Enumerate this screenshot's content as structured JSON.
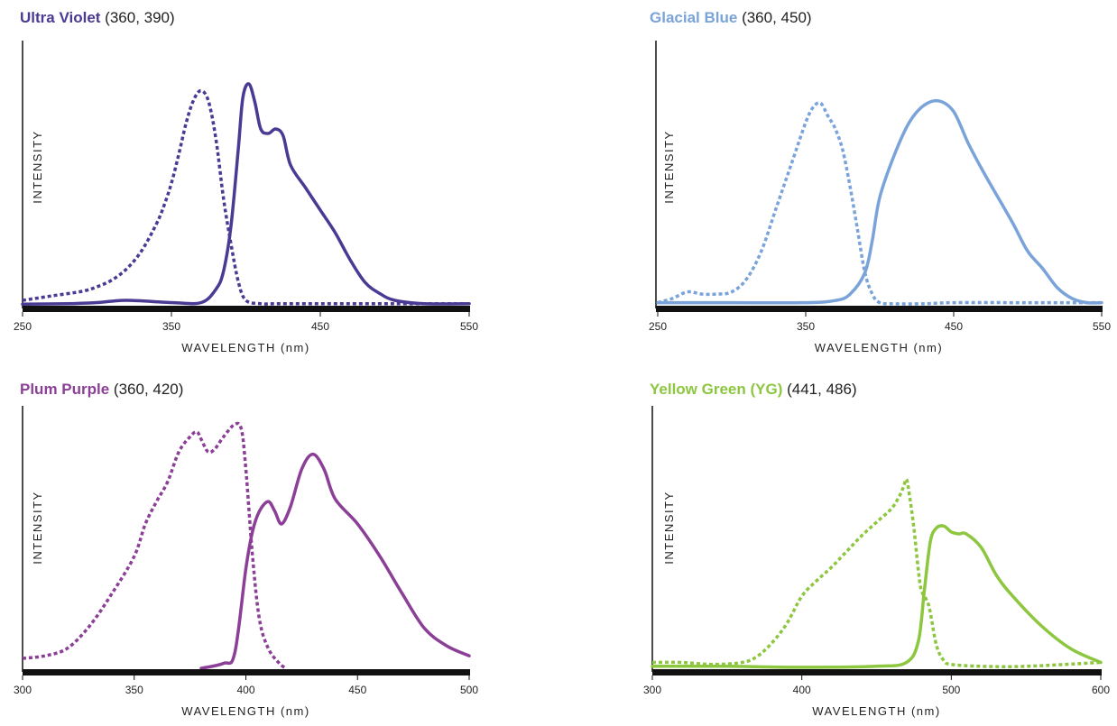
{
  "chart_data": [
    {
      "type": "line",
      "title": "Ultra Violet",
      "subtitle": "(360, 390)",
      "title_color": "#4b3a93",
      "line_color": "#4b3a93",
      "xlabel": "WAVELENGTH (nm)",
      "ylabel": "INTENSITY",
      "xlim": [
        250,
        550
      ],
      "ylim": [
        0,
        100
      ],
      "xticks": [
        250,
        350,
        450,
        550
      ],
      "grid": false,
      "series": [
        {
          "style": "dashed",
          "x": [
            250,
            270,
            290,
            300,
            310,
            320,
            330,
            340,
            345,
            350,
            355,
            360,
            365,
            370,
            375,
            380,
            385,
            390,
            395,
            400,
            410,
            420,
            450,
            500,
            550
          ],
          "y": [
            2,
            4,
            6,
            8,
            11,
            16,
            24,
            36,
            44,
            54,
            67,
            81,
            91,
            95,
            90,
            73,
            47,
            27,
            10,
            2,
            0.5,
            0.5,
            0.5,
            0.5,
            0.5
          ]
        },
        {
          "style": "solid",
          "x": [
            250,
            280,
            300,
            320,
            350,
            370,
            380,
            385,
            390,
            395,
            398,
            402,
            406,
            410,
            415,
            420,
            425,
            430,
            440,
            450,
            460,
            470,
            480,
            490,
            500,
            520,
            550
          ],
          "y": [
            0.3,
            0.5,
            1,
            2,
            1,
            1,
            7,
            15,
            35,
            70,
            92,
            98,
            90,
            78,
            76,
            78,
            75,
            62,
            52,
            42,
            32,
            20,
            10,
            5,
            2,
            0.5,
            0.5
          ]
        }
      ]
    },
    {
      "type": "line",
      "title": "Glacial Blue",
      "subtitle": "(360, 450)",
      "title_color": "#79a3d9",
      "line_color": "#79a3d9",
      "xlabel": "WAVELENGTH (nm)",
      "ylabel": "INTENSITY",
      "xlim": [
        250,
        550
      ],
      "ylim": [
        0,
        100
      ],
      "xticks": [
        250,
        350,
        450,
        550
      ],
      "grid": false,
      "series": [
        {
          "style": "dashed",
          "x": [
            250,
            260,
            270,
            280,
            290,
            300,
            310,
            320,
            330,
            340,
            350,
            355,
            360,
            365,
            370,
            375,
            380,
            385,
            390,
            395,
            400,
            410,
            430,
            450,
            500,
            550
          ],
          "y": [
            1,
            3,
            6,
            5,
            5,
            6,
            12,
            25,
            45,
            65,
            85,
            92,
            94,
            88,
            82,
            72,
            55,
            35,
            15,
            5,
            1,
            0.5,
            0.5,
            1,
            1,
            1
          ]
        },
        {
          "style": "solid",
          "x": [
            250,
            300,
            350,
            370,
            380,
            390,
            395,
            400,
            410,
            420,
            430,
            440,
            450,
            460,
            470,
            480,
            490,
            500,
            510,
            520,
            530,
            540,
            550
          ],
          "y": [
            1,
            1,
            1,
            2,
            5,
            15,
            30,
            50,
            70,
            85,
            93,
            95,
            90,
            75,
            62,
            50,
            38,
            25,
            17,
            8,
            3,
            1,
            1
          ]
        }
      ]
    },
    {
      "type": "line",
      "title": "Plum Purple",
      "subtitle": "(360, 420)",
      "title_color": "#8b3f96",
      "line_color": "#8b3f96",
      "xlabel": "WAVELENGTH (nm)",
      "ylabel": "INTENSITY",
      "xlim": [
        300,
        500
      ],
      "ylim": [
        0,
        100
      ],
      "xticks": [
        300,
        350,
        400,
        450,
        500
      ],
      "grid": false,
      "series": [
        {
          "style": "dashed",
          "x": [
            300,
            310,
            320,
            330,
            340,
            350,
            355,
            360,
            365,
            370,
            375,
            378,
            380,
            383,
            386,
            390,
            395,
            398,
            400,
            403,
            406,
            410,
            415,
            418
          ],
          "y": [
            4,
            5,
            8,
            17,
            30,
            45,
            58,
            67,
            75,
            87,
            93,
            95,
            92,
            87,
            88,
            93,
            98,
            96,
            80,
            45,
            20,
            8,
            2,
            0
          ]
        },
        {
          "style": "solid",
          "x": [
            380,
            390,
            395,
            400,
            403,
            406,
            410,
            413,
            416,
            420,
            425,
            430,
            435,
            440,
            450,
            460,
            470,
            480,
            490,
            500
          ],
          "y": [
            0,
            2,
            6,
            40,
            55,
            63,
            67,
            63,
            58,
            65,
            80,
            86,
            80,
            68,
            58,
            45,
            30,
            16,
            9,
            5
          ]
        }
      ]
    },
    {
      "type": "line",
      "title": "Yellow Green (YG)",
      "subtitle": "(441, 486)",
      "title_color": "#8dc63f",
      "line_color": "#8dc63f",
      "xlabel": "WAVELENGTH (nm)",
      "ylabel": "INTENSITY",
      "xlim": [
        300,
        600
      ],
      "ylim": [
        0,
        100
      ],
      "xticks": [
        300,
        400,
        500,
        600
      ],
      "grid": false,
      "series": [
        {
          "style": "dashed",
          "x": [
            300,
            320,
            340,
            360,
            370,
            380,
            390,
            400,
            410,
            420,
            430,
            440,
            450,
            460,
            465,
            468,
            470,
            472,
            475,
            478,
            480,
            485,
            490,
            495,
            500,
            520,
            550,
            600
          ],
          "y": [
            3,
            3,
            2,
            3,
            6,
            13,
            23,
            37,
            45,
            52,
            60,
            68,
            75,
            82,
            88,
            93,
            97,
            89,
            72,
            50,
            40,
            32,
            12,
            4,
            2,
            1,
            1,
            3
          ]
        },
        {
          "style": "solid",
          "x": [
            300,
            350,
            400,
            450,
            470,
            478,
            482,
            486,
            490,
            495,
            500,
            505,
            510,
            520,
            530,
            540,
            560,
            580,
            600
          ],
          "y": [
            1,
            1,
            0.5,
            1,
            3,
            14,
            40,
            65,
            72,
            73,
            70,
            69,
            69,
            62,
            48,
            38,
            22,
            10,
            3
          ]
        }
      ]
    }
  ]
}
